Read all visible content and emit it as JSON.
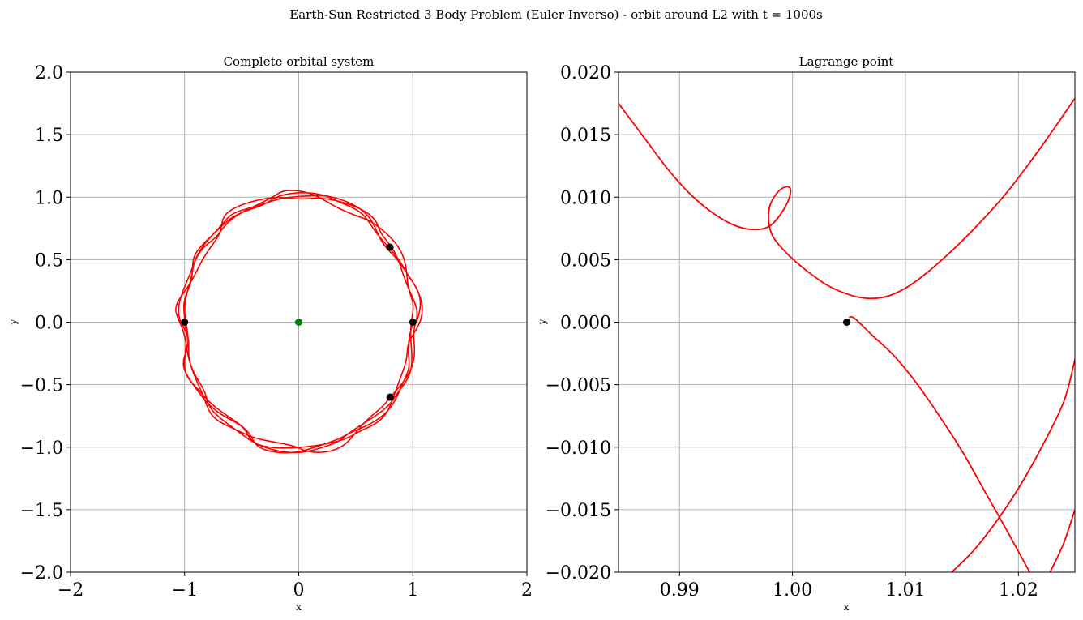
{
  "figure": {
    "suptitle": "Earth-Sun Restricted 3 Body Problem (Euler Inverso) - orbit around L2 with t = 1000s"
  },
  "chart_data": [
    {
      "type": "line",
      "title": "Complete orbital system",
      "xlabel": "x",
      "ylabel": "y",
      "xlim": [
        -2,
        2
      ],
      "ylim": [
        -2,
        2
      ],
      "grid": true,
      "xticks": [
        -2,
        -1,
        0,
        1,
        2
      ],
      "xtick_labels": [
        "−2",
        "−1",
        "0",
        "1",
        "2"
      ],
      "yticks": [
        -2.0,
        -1.5,
        -1.0,
        -0.5,
        0.0,
        0.5,
        1.0,
        1.5,
        2.0
      ],
      "ytick_labels": [
        "−2.0",
        "−1.5",
        "−1.0",
        "−0.5",
        "0.0",
        "0.5",
        "1.0",
        "1.5",
        "2.0"
      ],
      "series": [
        {
          "kind": "orbit",
          "color": "#ff0000",
          "approx_radius": 1.02,
          "ripple_amplitude": 0.03,
          "loops": 22
        },
        {
          "kind": "points",
          "color": "#008000",
          "points": [
            [
              0.0,
              0.0
            ]
          ]
        },
        {
          "kind": "points",
          "color": "#000000",
          "points": [
            [
              1.0,
              0.0
            ],
            [
              -1.0,
              0.0
            ],
            [
              0.8,
              0.6
            ],
            [
              0.8,
              -0.6
            ]
          ]
        }
      ]
    },
    {
      "type": "line",
      "title": "Lagrange point",
      "xlabel": "x",
      "ylabel": "y",
      "xlim": [
        0.9846,
        1.025
      ],
      "ylim": [
        -0.02,
        0.02
      ],
      "grid": true,
      "xticks": [
        0.99,
        1.0,
        1.01,
        1.02
      ],
      "xtick_labels": [
        "0.99",
        "1.00",
        "1.01",
        "1.02"
      ],
      "yticks": [
        -0.02,
        -0.015,
        -0.01,
        -0.005,
        0.0,
        0.005,
        0.01,
        0.015,
        0.02
      ],
      "ytick_labels": [
        "−0.020",
        "−0.015",
        "−0.010",
        "−0.005",
        "0.000",
        "0.005",
        "0.010",
        "0.015",
        "0.020"
      ],
      "series": [
        {
          "kind": "trajectory",
          "color": "#ff0000",
          "points": [
            [
              0.9846,
              0.0175
            ],
            [
              0.987,
              0.0146
            ],
            [
              0.989,
              0.0122
            ],
            [
              0.991,
              0.0102
            ],
            [
              0.993,
              0.0087
            ],
            [
              0.995,
              0.0077
            ],
            [
              0.9967,
              0.0074
            ],
            [
              0.998,
              0.0077
            ],
            [
              0.999,
              0.0087
            ],
            [
              0.9997,
              0.0099
            ],
            [
              0.9998,
              0.0107
            ],
            [
              0.9993,
              0.0108
            ],
            [
              0.9986,
              0.0103
            ],
            [
              0.998,
              0.0093
            ],
            [
              0.9979,
              0.008
            ],
            [
              0.9983,
              0.0068
            ],
            [
              0.9995,
              0.0055
            ],
            [
              1.001,
              0.0043
            ],
            [
              1.003,
              0.003
            ],
            [
              1.005,
              0.0022
            ],
            [
              1.0067,
              0.0019
            ],
            [
              1.0085,
              0.0021
            ],
            [
              1.0105,
              0.003
            ],
            [
              1.013,
              0.0048
            ],
            [
              1.016,
              0.0074
            ],
            [
              1.019,
              0.0104
            ],
            [
              1.022,
              0.014
            ],
            [
              1.025,
              0.0179
            ]
          ]
        },
        {
          "kind": "trajectory",
          "color": "#ff0000",
          "points": [
            [
              1.005,
              0.0004
            ],
            [
              1.0055,
              0.0003
            ],
            [
              1.007,
              -0.001
            ],
            [
              1.009,
              -0.0027
            ],
            [
              1.011,
              -0.0049
            ],
            [
              1.013,
              -0.0075
            ],
            [
              1.015,
              -0.0103
            ],
            [
              1.017,
              -0.0135
            ],
            [
              1.019,
              -0.0167
            ],
            [
              1.021,
              -0.02
            ]
          ]
        },
        {
          "kind": "trajectory",
          "color": "#ff0000",
          "points": [
            [
              1.0141,
              -0.02
            ],
            [
              1.016,
              -0.0183
            ],
            [
              1.018,
              -0.016
            ],
            [
              1.02,
              -0.0133
            ],
            [
              1.022,
              -0.0101
            ],
            [
              1.024,
              -0.0064
            ],
            [
              1.025,
              -0.003
            ]
          ]
        },
        {
          "kind": "trajectory",
          "color": "#ff0000",
          "points": [
            [
              1.0228,
              -0.02
            ],
            [
              1.024,
              -0.0177
            ],
            [
              1.025,
              -0.015
            ]
          ]
        },
        {
          "kind": "points",
          "color": "#000000",
          "points": [
            [
              1.0048,
              0.0
            ]
          ]
        }
      ]
    }
  ]
}
